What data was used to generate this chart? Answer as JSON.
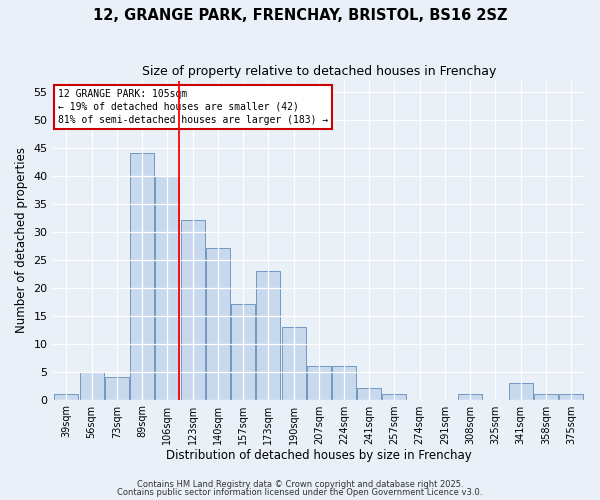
{
  "title1": "12, GRANGE PARK, FRENCHAY, BRISTOL, BS16 2SZ",
  "title2": "Size of property relative to detached houses in Frenchay",
  "xlabel": "Distribution of detached houses by size in Frenchay",
  "ylabel": "Number of detached properties",
  "categories": [
    "39sqm",
    "56sqm",
    "73sqm",
    "89sqm",
    "106sqm",
    "123sqm",
    "140sqm",
    "157sqm",
    "173sqm",
    "190sqm",
    "207sqm",
    "224sqm",
    "241sqm",
    "257sqm",
    "274sqm",
    "291sqm",
    "308sqm",
    "325sqm",
    "341sqm",
    "358sqm",
    "375sqm"
  ],
  "values": [
    1,
    5,
    4,
    44,
    40,
    32,
    27,
    17,
    23,
    13,
    6,
    6,
    2,
    1,
    0,
    0,
    1,
    0,
    3,
    1,
    1
  ],
  "bar_color": "#c8d9ee",
  "bar_edge_color": "#7099c0",
  "red_line_index": 4,
  "annotation_title": "12 GRANGE PARK: 105sqm",
  "annotation_line1": "← 19% of detached houses are smaller (42)",
  "annotation_line2": "81% of semi-detached houses are larger (183) →",
  "annotation_box_color": "#ffffff",
  "annotation_box_edge": "#cc0000",
  "ylim": [
    0,
    57
  ],
  "yticks": [
    0,
    5,
    10,
    15,
    20,
    25,
    30,
    35,
    40,
    45,
    50,
    55
  ],
  "background_color": "#eaf0f8",
  "grid_color": "#ffffff",
  "footer1": "Contains HM Land Registry data © Crown copyright and database right 2025.",
  "footer2": "Contains public sector information licensed under the Open Government Licence v3.0."
}
